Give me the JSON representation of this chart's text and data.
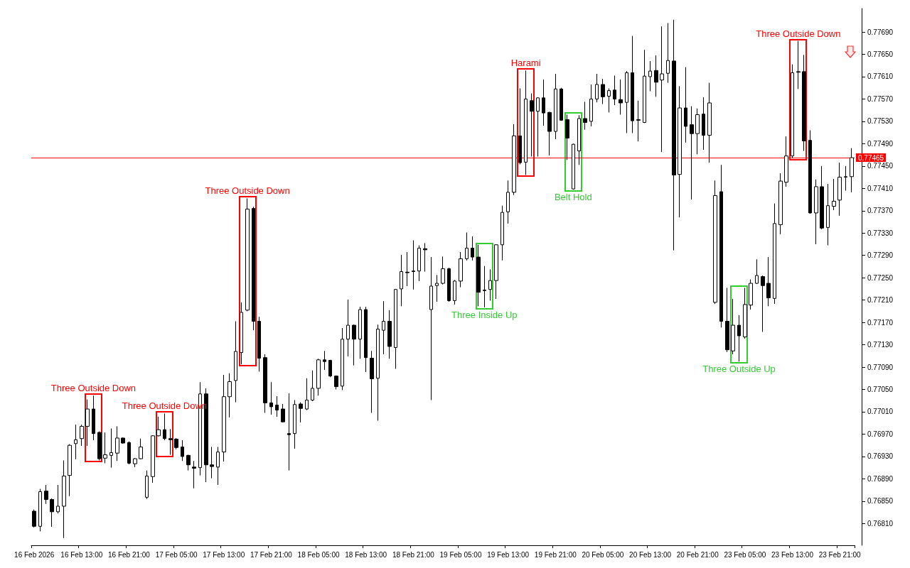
{
  "chart_data": {
    "type": "candlestick",
    "categories": [
      "16 Feb 2026",
      null,
      null,
      null,
      null,
      null,
      null,
      null,
      "16 Feb 13:00",
      null,
      null,
      null,
      null,
      null,
      null,
      null,
      "16 Feb 21:00",
      null,
      null,
      null,
      null,
      null,
      null,
      null,
      "17 Feb 05:00",
      null,
      null,
      null,
      null,
      null,
      null,
      null,
      "17 Feb 13:00",
      null,
      null,
      null,
      null,
      null,
      null,
      null,
      "17 Feb 21:00",
      null,
      null,
      null,
      null,
      null,
      null,
      null,
      "18 Feb 05:00",
      null,
      null,
      null,
      null,
      null,
      null,
      null,
      "18 Feb 13:00",
      null,
      null,
      null,
      null,
      null,
      null,
      null,
      "18 Feb 21:00",
      null,
      null,
      null,
      null,
      null,
      null,
      null,
      "19 Feb 05:00",
      null,
      null,
      null,
      null,
      null,
      null,
      null,
      "19 Feb 13:00",
      null,
      null,
      null,
      null,
      null,
      null,
      null,
      "19 Feb 21:00",
      null,
      null,
      null,
      null,
      null,
      null,
      null,
      "20 Feb 05:00",
      null,
      null,
      null,
      null,
      null,
      null,
      null,
      "20 Feb 13:00",
      null,
      null,
      null,
      null,
      null,
      null,
      null,
      "20 Feb 21:00",
      null,
      null,
      null,
      null,
      null,
      null,
      null,
      "23 Feb 05:00",
      null,
      null,
      null,
      null,
      null,
      null,
      null,
      "23 Feb 13:00",
      null,
      null,
      null,
      null,
      null,
      null,
      null,
      "23 Feb 21:00",
      null,
      null
    ],
    "series": [
      {
        "color": "#000000",
        "ohlc": [
          [
            0.76832,
            0.76835,
            0.76803,
            0.76805
          ],
          [
            0.76805,
            0.76872,
            0.76796,
            0.76867
          ],
          [
            0.76868,
            0.76879,
            0.76845,
            0.76853
          ],
          [
            0.76853,
            0.76855,
            0.76804,
            0.76831
          ],
          [
            0.76831,
            0.76879,
            0.76828,
            0.76841
          ],
          [
            0.76841,
            0.76923,
            0.76784,
            0.76895
          ],
          [
            0.76896,
            0.76952,
            0.76859,
            0.7695
          ],
          [
            0.76953,
            0.76987,
            0.76925,
            0.7696
          ],
          [
            0.76962,
            0.76987,
            0.76949,
            0.76984
          ],
          [
            0.76984,
            0.77032,
            0.76949,
            0.77015
          ],
          [
            0.77015,
            0.77039,
            0.76959,
            0.76971
          ],
          [
            0.76973,
            0.76975,
            0.76923,
            0.76926
          ],
          [
            0.76927,
            0.76973,
            0.76918,
            0.76933
          ],
          [
            0.76932,
            0.7698,
            0.7691,
            0.76937
          ],
          [
            0.76936,
            0.76984,
            0.76922,
            0.76963
          ],
          [
            0.76963,
            0.76964,
            0.76953,
            0.76954
          ],
          [
            0.76955,
            0.76957,
            0.76916,
            0.76918
          ],
          [
            0.76917,
            0.76927,
            0.76911,
            0.76926
          ],
          [
            0.76926,
            0.76962,
            0.76925,
            0.76947
          ],
          [
            0.76857,
            0.76905,
            0.76854,
            0.76895
          ],
          [
            0.76894,
            0.76968,
            0.76883,
            0.76967
          ],
          [
            0.76967,
            0.77001,
            0.76966,
            0.76978
          ],
          [
            0.76978,
            0.77007,
            0.76959,
            0.76962
          ],
          [
            0.76962,
            0.76979,
            0.76933,
            0.7696
          ],
          [
            0.76961,
            0.76963,
            0.76943,
            0.76946
          ],
          [
            0.76947,
            0.76959,
            0.76922,
            0.7693
          ],
          [
            0.76932,
            0.76933,
            0.76905,
            0.76915
          ],
          [
            0.76911,
            0.76922,
            0.76873,
            0.76909
          ],
          [
            0.7691,
            0.77063,
            0.76896,
            0.77042
          ],
          [
            0.77042,
            0.77052,
            0.76884,
            0.76915
          ],
          [
            0.76915,
            0.76947,
            0.76891,
            0.76912
          ],
          [
            0.76911,
            0.76947,
            0.76879,
            0.76938
          ],
          [
            0.76938,
            0.77076,
            0.76921,
            0.77037
          ],
          [
            0.77037,
            0.77079,
            0.77,
            0.77064
          ],
          [
            0.77066,
            0.77172,
            0.77027,
            0.77118
          ],
          [
            0.77116,
            0.77206,
            0.77095,
            0.77188
          ],
          [
            0.77192,
            0.77392,
            0.7719,
            0.77373
          ],
          [
            0.77374,
            0.77377,
            0.77156,
            0.77172
          ],
          [
            0.77172,
            0.7718,
            0.77082,
            0.77106
          ],
          [
            0.77107,
            0.77113,
            0.77008,
            0.77026
          ],
          [
            0.77026,
            0.77063,
            0.77005,
            0.77019
          ],
          [
            0.77022,
            0.77038,
            0.77001,
            0.77013
          ],
          [
            0.77015,
            0.77024,
            0.76991,
            0.76992
          ],
          [
            0.76971,
            0.77043,
            0.76905,
            0.76969
          ],
          [
            0.76971,
            0.77031,
            0.76944,
            0.77023
          ],
          [
            0.77024,
            0.77027,
            0.76991,
            0.77016
          ],
          [
            0.77015,
            0.7707,
            0.77013,
            0.77031
          ],
          [
            0.77031,
            0.77084,
            0.77029,
            0.77052
          ],
          [
            0.77052,
            0.77105,
            0.77039,
            0.77103
          ],
          [
            0.77103,
            0.77119,
            0.77085,
            0.771
          ],
          [
            0.77102,
            0.77103,
            0.77072,
            0.77074
          ],
          [
            0.77074,
            0.77075,
            0.7705,
            0.77055
          ],
          [
            0.77056,
            0.7716,
            0.77049,
            0.7714
          ],
          [
            0.7714,
            0.77211,
            0.77109,
            0.77165
          ],
          [
            0.77165,
            0.77166,
            0.77093,
            0.7714
          ],
          [
            0.7714,
            0.77198,
            0.77105,
            0.77193
          ],
          [
            0.77193,
            0.77198,
            0.77081,
            0.77107
          ],
          [
            0.77106,
            0.77119,
            0.77008,
            0.77069
          ],
          [
            0.7707,
            0.77166,
            0.76994,
            0.77158
          ],
          [
            0.77156,
            0.77208,
            0.77113,
            0.77172
          ],
          [
            0.77172,
            0.77192,
            0.77105,
            0.77127
          ],
          [
            0.77125,
            0.7723,
            0.77087,
            0.77229
          ],
          [
            0.7723,
            0.77291,
            0.77199,
            0.77261
          ],
          [
            0.7726,
            0.77296,
            0.77235,
            0.77259
          ],
          [
            0.77262,
            0.77317,
            0.77229,
            0.77261
          ],
          [
            0.77262,
            0.77308,
            0.77244,
            0.77303
          ],
          [
            0.77302,
            0.77312,
            0.77261,
            0.773
          ],
          [
            0.77193,
            0.77287,
            0.77031,
            0.77235
          ],
          [
            0.77236,
            0.77255,
            0.77207,
            0.7724
          ],
          [
            0.7724,
            0.77288,
            0.77238,
            0.77266
          ],
          [
            0.77266,
            0.77268,
            0.77207,
            0.77209
          ],
          [
            0.77209,
            0.77246,
            0.77202,
            0.77244
          ],
          [
            0.77244,
            0.77296,
            0.77233,
            0.77284
          ],
          [
            0.77284,
            0.77331,
            0.77281,
            0.77303
          ],
          [
            0.77303,
            0.77324,
            0.77281,
            0.77287
          ],
          [
            0.77287,
            0.77309,
            0.77199,
            0.77224
          ],
          [
            0.77228,
            0.77271,
            0.77197,
            0.77227
          ],
          [
            0.77229,
            0.77265,
            0.77209,
            0.77245
          ],
          [
            0.77245,
            0.7731,
            0.77212,
            0.77309
          ],
          [
            0.77309,
            0.77379,
            0.77281,
            0.77367
          ],
          [
            0.77368,
            0.77424,
            0.77347,
            0.77403
          ],
          [
            0.77403,
            0.77525,
            0.77398,
            0.77504
          ],
          [
            0.77504,
            0.77589,
            0.77453,
            0.77456
          ],
          [
            0.77457,
            0.77621,
            0.77434,
            0.7757
          ],
          [
            0.77567,
            0.7758,
            0.77467,
            0.77548
          ],
          [
            0.77548,
            0.77573,
            0.77467,
            0.77572
          ],
          [
            0.77572,
            0.77605,
            0.77522,
            0.77545
          ],
          [
            0.77546,
            0.77547,
            0.77469,
            0.77512
          ],
          [
            0.77512,
            0.77615,
            0.77498,
            0.77588
          ],
          [
            0.77588,
            0.7759,
            0.77531,
            0.77532
          ],
          [
            0.77533,
            0.77542,
            0.77461,
            0.775
          ],
          [
            0.77409,
            0.7749,
            0.77408,
            0.77489
          ],
          [
            0.77477,
            0.77541,
            0.77452,
            0.77535
          ],
          [
            0.77535,
            0.77565,
            0.77515,
            0.77528
          ],
          [
            0.7753,
            0.77596,
            0.77521,
            0.7757
          ],
          [
            0.7757,
            0.77615,
            0.77564,
            0.77596
          ],
          [
            0.77596,
            0.77606,
            0.77561,
            0.77574
          ],
          [
            0.77575,
            0.77589,
            0.77546,
            0.77585
          ],
          [
            0.77586,
            0.77612,
            0.77559,
            0.7757
          ],
          [
            0.77569,
            0.77605,
            0.77542,
            0.77563
          ],
          [
            0.77564,
            0.7762,
            0.77509,
            0.77617
          ],
          [
            0.77617,
            0.77683,
            0.77509,
            0.77531
          ],
          [
            0.77533,
            0.77567,
            0.77494,
            0.77532
          ],
          [
            0.77528,
            0.77658,
            0.77527,
            0.77611
          ],
          [
            0.7761,
            0.77638,
            0.77584,
            0.7762
          ],
          [
            0.77621,
            0.77648,
            0.77574,
            0.776
          ],
          [
            0.77604,
            0.777,
            0.77475,
            0.77615
          ],
          [
            0.77616,
            0.77706,
            0.77599,
            0.77639
          ],
          [
            0.77638,
            0.77712,
            0.77299,
            0.77434
          ],
          [
            0.77435,
            0.77593,
            0.77358,
            0.77554
          ],
          [
            0.77554,
            0.77627,
            0.77492,
            0.77521
          ],
          [
            0.77524,
            0.77557,
            0.7739,
            0.77508
          ],
          [
            0.77508,
            0.77553,
            0.77471,
            0.77542
          ],
          [
            0.77543,
            0.77573,
            0.77479,
            0.77505
          ],
          [
            0.77505,
            0.77599,
            0.77456,
            0.77563
          ],
          [
            0.77206,
            0.77424,
            0.77203,
            0.77397
          ],
          [
            0.77404,
            0.77452,
            0.77161,
            0.77172
          ],
          [
            0.77172,
            0.77232,
            0.77117,
            0.77121
          ],
          [
            0.77119,
            0.77212,
            0.77113,
            0.77165
          ],
          [
            0.77165,
            0.77183,
            0.771,
            0.77146
          ],
          [
            0.77144,
            0.77232,
            0.77141,
            0.77202
          ],
          [
            0.77201,
            0.77247,
            0.77193,
            0.7724
          ],
          [
            0.7724,
            0.77283,
            0.77239,
            0.77254
          ],
          [
            0.77252,
            0.77254,
            0.77153,
            0.77236
          ],
          [
            0.7724,
            0.77287,
            0.77199,
            0.77214
          ],
          [
            0.77213,
            0.77383,
            0.77203,
            0.77347
          ],
          [
            0.77345,
            0.77437,
            0.77328,
            0.77423
          ],
          [
            0.77421,
            0.77503,
            0.77413,
            0.77468
          ],
          [
            0.77468,
            0.77632,
            0.77464,
            0.77617
          ],
          [
            0.77619,
            0.77674,
            0.77588,
            0.77618
          ],
          [
            0.77619,
            0.77649,
            0.77477,
            0.77495
          ],
          [
            0.77496,
            0.77514,
            0.77365,
            0.77366
          ],
          [
            0.77366,
            0.77426,
            0.7731,
            0.77413
          ],
          [
            0.77413,
            0.7745,
            0.77337,
            0.77339
          ],
          [
            0.7734,
            0.77418,
            0.77308,
            0.77379
          ],
          [
            0.77378,
            0.77427,
            0.77371,
            0.77387
          ],
          [
            0.77389,
            0.77456,
            0.77361,
            0.7743
          ],
          [
            0.7743,
            0.7745,
            0.77406,
            0.77431
          ],
          [
            0.77431,
            0.77482,
            0.77403,
            0.77465
          ]
        ]
      }
    ],
    "ylim": [
      0.76771,
      0.77732
    ],
    "yticks": [
      {
        "value": 0.7681,
        "label": "0.76810"
      },
      {
        "value": 0.7685,
        "label": "0.76850"
      },
      {
        "value": 0.7689,
        "label": "0.76890"
      },
      {
        "value": 0.7693,
        "label": "0.76930"
      },
      {
        "value": 0.7697,
        "label": "0.76970"
      },
      {
        "value": 0.7701,
        "label": "0.77010"
      },
      {
        "value": 0.7705,
        "label": "0.77050"
      },
      {
        "value": 0.7709,
        "label": "0.77090"
      },
      {
        "value": 0.7713,
        "label": "0.77130"
      },
      {
        "value": 0.7717,
        "label": "0.77170"
      },
      {
        "value": 0.7721,
        "label": "0.77210"
      },
      {
        "value": 0.7725,
        "label": "0.77250"
      },
      {
        "value": 0.7729,
        "label": "0.77290"
      },
      {
        "value": 0.7733,
        "label": "0.77330"
      },
      {
        "value": 0.7737,
        "label": "0.77370"
      },
      {
        "value": 0.7741,
        "label": "0.77410"
      },
      {
        "value": 0.7745,
        "label": "0.77450"
      },
      {
        "value": 0.7749,
        "label": "0.77490"
      },
      {
        "value": 0.7753,
        "label": "0.77530"
      },
      {
        "value": 0.7757,
        "label": "0.77570"
      },
      {
        "value": 0.7761,
        "label": "0.77610"
      },
      {
        "value": 0.7765,
        "label": "0.77650"
      },
      {
        "value": 0.7769,
        "label": "0.77690"
      }
    ],
    "ref_lines": [
      {
        "axis": "y",
        "value": 0.77465,
        "label": "0.77465",
        "color": "#ff0000"
      }
    ],
    "annotations": [
      {
        "text": "Three Outside Down",
        "y": 0.77039
      },
      {
        "text": "Three Outside Down",
        "y": 0.77007
      },
      {
        "text": "Three Outside Down",
        "y": 0.77392
      },
      {
        "text": "Three Inside Up",
        "y": 0.77197
      },
      {
        "text": "Harami",
        "y": 0.77621
      },
      {
        "text": "Belt Hold",
        "y": 0.77408
      },
      {
        "text": "Three Outside Up",
        "y": 0.771
      },
      {
        "text": "Three Outside Down",
        "y": 0.77674
      }
    ],
    "grid": false
  }
}
